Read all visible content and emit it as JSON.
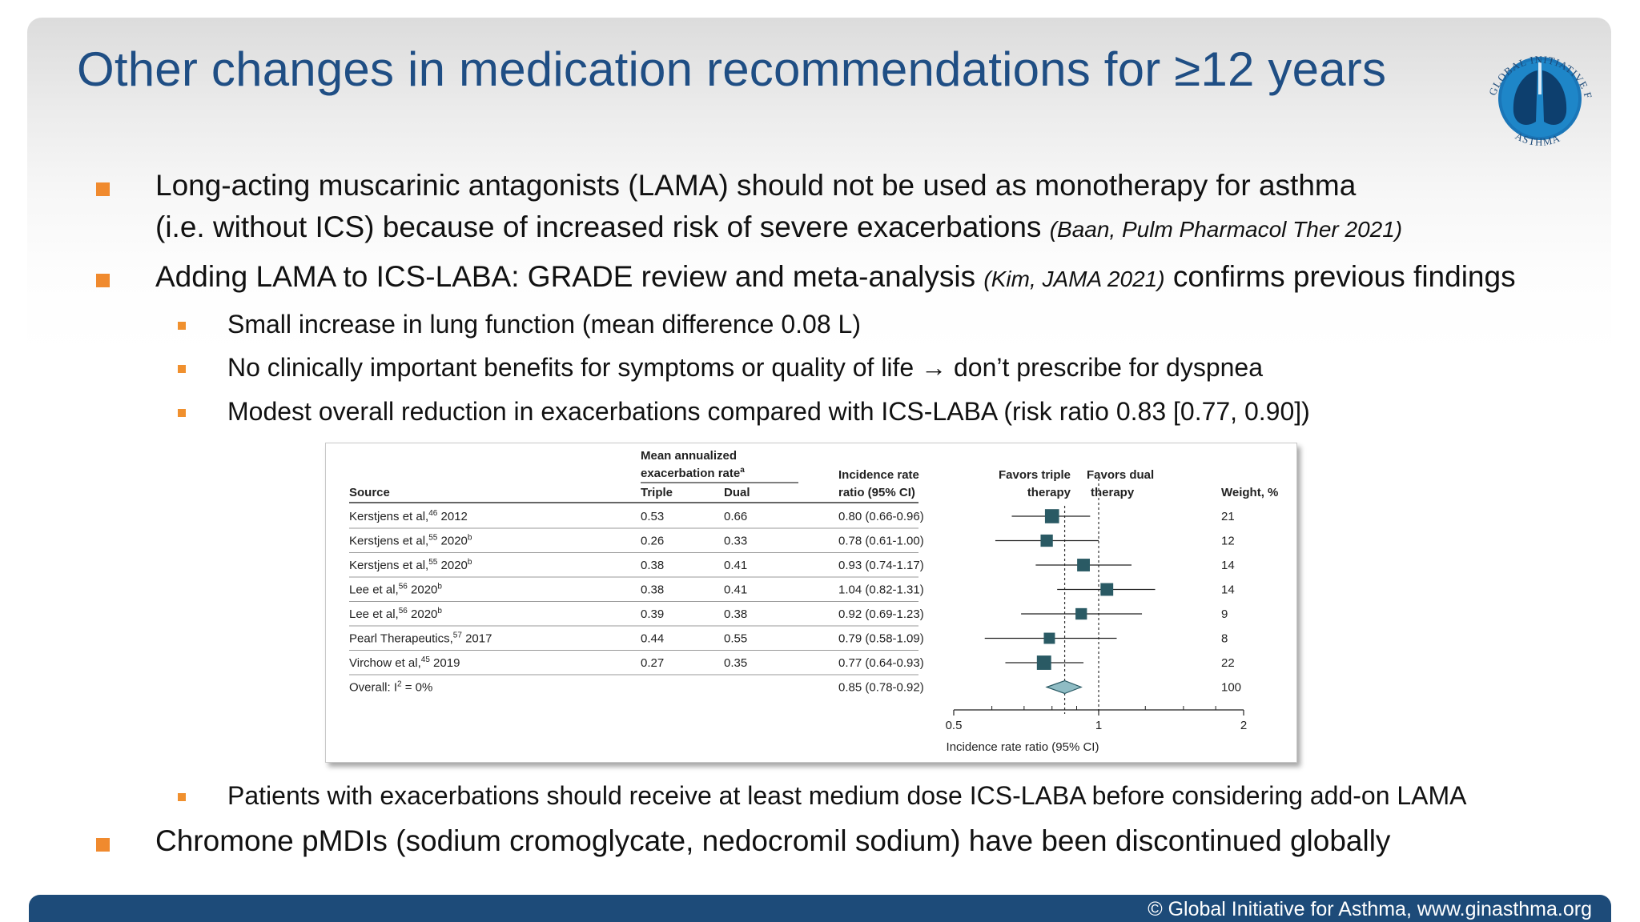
{
  "title": "Other changes in medication recommendations for ≥12 years",
  "logo": {
    "arc_top": "GLOBAL INITIATIVE FOR",
    "arc_bottom": "ASTHMA"
  },
  "bullets": {
    "lama_line1": "Long-acting muscarinic antagonists (LAMA) should not be used as monotherapy for asthma",
    "lama_line2": "(i.e. without ICS) because of increased risk of severe exacerbations ",
    "lama_cite": "(Baan, Pulm Pharmacol Ther 2021)",
    "adding_part1": "Adding LAMA to ICS-LABA: GRADE review and meta-analysis ",
    "adding_cite": "(Kim, JAMA 2021)",
    "adding_part2": " confirms previous findings",
    "sub1": "Small increase in lung function (mean difference 0.08 L)",
    "sub2": "No clinically important benefits for symptoms or quality of life → don’t prescribe for dyspnea",
    "sub3": "Modest overall reduction in exacerbations compared with ICS-LABA (risk ratio 0.83 [0.77, 0.90])",
    "sub4": "Patients with exacerbations should receive at least medium dose ICS-LABA before considering add-on LAMA",
    "chromone": "Chromone pMDIs (sodium cromoglycate, nedocromil sodium) have been discontinued globally"
  },
  "forest": {
    "headers": {
      "source": "Source",
      "mean_rate_line1": "Mean annualized",
      "mean_rate_line2": "exacerbation rate",
      "mean_rate_sup": "a",
      "triple": "Triple",
      "dual": "Dual",
      "irr_line1": "Incidence rate",
      "irr_line2": "ratio (95% CI)",
      "favors_triple_line1": "Favors triple",
      "favors_triple_line2": "therapy",
      "favors_dual_line1": "Favors dual",
      "favors_dual_line2": "therapy",
      "weight": "Weight, %"
    },
    "rows": [
      {
        "author": "Kerstjens et al,",
        "ref": "46",
        "year": " 2012",
        "sup2": "",
        "triple": "0.53",
        "dual": "0.66",
        "ratio": "0.80 (0.66-0.96)",
        "weight": "21"
      },
      {
        "author": "Kerstjens et al,",
        "ref": "55",
        "year": " 2020",
        "sup2": "b",
        "triple": "0.26",
        "dual": "0.33",
        "ratio": "0.78 (0.61-1.00)",
        "weight": "12"
      },
      {
        "author": "Kerstjens et al,",
        "ref": "55",
        "year": " 2020",
        "sup2": "b",
        "triple": "0.38",
        "dual": "0.41",
        "ratio": "0.93 (0.74-1.17)",
        "weight": "14"
      },
      {
        "author": "Lee et al,",
        "ref": "56",
        "year": " 2020",
        "sup2": "b",
        "triple": "0.38",
        "dual": "0.41",
        "ratio": "1.04 (0.82-1.31)",
        "weight": "14"
      },
      {
        "author": "Lee et al,",
        "ref": "56",
        "year": " 2020",
        "sup2": "b",
        "triple": "0.39",
        "dual": "0.38",
        "ratio": "0.92 (0.69-1.23)",
        "weight": "9"
      },
      {
        "author": "Pearl Therapeutics,",
        "ref": "57",
        "year": " 2017",
        "sup2": "",
        "triple": "0.44",
        "dual": "0.55",
        "ratio": "0.79 (0.58-1.09)",
        "weight": "8"
      },
      {
        "author": "Virchow et al,",
        "ref": "45",
        "year": " 2019",
        "sup2": "",
        "triple": "0.27",
        "dual": "0.35",
        "ratio": "0.77 (0.64-0.93)",
        "weight": "22"
      }
    ],
    "overall": {
      "label_pre": "Overall: I",
      "label_sup": "2",
      "label_post": " = 0%",
      "ratio": "0.85 (0.78-0.92)",
      "weight": "100"
    },
    "axis_label": "Incidence rate ratio (95% CI)",
    "ticks": [
      "0.5",
      "1",
      "2"
    ]
  },
  "chart_data": {
    "type": "forest",
    "xlabel": "Incidence rate ratio (95% CI)",
    "xscale": "log",
    "xlim": [
      0.5,
      2
    ],
    "reference_line": 1,
    "pooled_line": 0.85,
    "studies": [
      {
        "est": 0.8,
        "lo": 0.66,
        "hi": 0.96,
        "weight": 21
      },
      {
        "est": 0.78,
        "lo": 0.61,
        "hi": 1.0,
        "weight": 12
      },
      {
        "est": 0.93,
        "lo": 0.74,
        "hi": 1.17,
        "weight": 14
      },
      {
        "est": 1.04,
        "lo": 0.82,
        "hi": 1.31,
        "weight": 14
      },
      {
        "est": 0.92,
        "lo": 0.69,
        "hi": 1.23,
        "weight": 9
      },
      {
        "est": 0.79,
        "lo": 0.58,
        "hi": 1.09,
        "weight": 8
      },
      {
        "est": 0.77,
        "lo": 0.64,
        "hi": 0.93,
        "weight": 22
      }
    ],
    "overall": {
      "est": 0.85,
      "lo": 0.78,
      "hi": 0.92,
      "weight": 100
    }
  },
  "footer": "© Global Initiative for Asthma, www.ginasthma.org"
}
